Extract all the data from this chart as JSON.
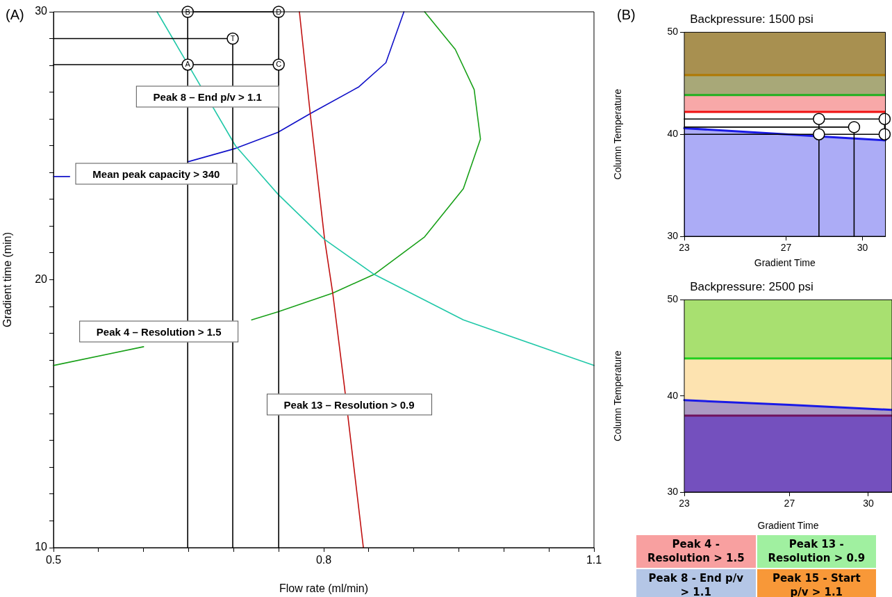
{
  "chart_data": [
    {
      "type": "line",
      "xlabel": "Flow rate (ml/min)",
      "ylabel": "Gradient time (min)",
      "annotations": [
        "(A)",
        "Peak 8 – End p/v > 1.1",
        "Mean peak capacity > 340",
        "Peak 4 – Resolution > 1.5",
        "Peak 13 – Resolution > 0.9"
      ],
      "xlim": [
        0.5,
        1.1
      ],
      "ylim": [
        10,
        30
      ],
      "grid": false,
      "xticks": [
        0.5,
        {
          "value": 0.55,
          "label": null
        },
        {
          "value": 0.6,
          "label": null
        },
        {
          "value": 0.65,
          "label": null
        },
        {
          "value": 0.7,
          "label": null
        },
        {
          "value": 0.75,
          "label": null
        },
        0.8,
        {
          "value": 0.85,
          "label": null
        },
        {
          "value": 0.9,
          "label": null
        },
        {
          "value": 0.95,
          "label": null
        },
        {
          "value": 1.0,
          "label": null
        },
        {
          "value": 1.05,
          "label": null
        },
        1.1
      ],
      "yticks": [
        10,
        {
          "value": 11,
          "label": null
        },
        {
          "value": 12,
          "label": null
        },
        {
          "value": 13,
          "label": null
        },
        {
          "value": 14,
          "label": null
        },
        {
          "value": 15,
          "label": null
        },
        {
          "value": 16,
          "label": null
        },
        {
          "value": 17,
          "label": null
        },
        {
          "value": 18,
          "label": null
        },
        {
          "value": 19,
          "label": null
        },
        20,
        {
          "value": 21,
          "label": null
        },
        {
          "value": 22,
          "label": null
        },
        {
          "value": 23,
          "label": null
        },
        {
          "value": 24,
          "label": null
        },
        {
          "value": 25,
          "label": null
        },
        {
          "value": 26,
          "label": null
        },
        {
          "value": 27,
          "label": null
        },
        {
          "value": 28,
          "label": null
        },
        {
          "value": 29,
          "label": null
        },
        30
      ],
      "marker": "none",
      "series": [
        {
          "color": "#18a018",
          "x": [
            0.5,
            0.6,
            0.649,
            0.72,
            0.749,
            0.81,
            0.856,
            0.912,
            0.955,
            0.974,
            0.967,
            0.946,
            0.912
          ],
          "values": [
            16.8,
            17.5,
            null,
            18.5,
            18.8,
            19.5,
            20.2,
            21.6,
            23.4,
            25.25,
            27.1,
            28.6,
            30
          ]
        },
        {
          "color": "#1010c8",
          "x": [
            0.5,
            0.518,
            0.6,
            0.649,
            0.702,
            0.749,
            0.785,
            0.839,
            0.869,
            0.889
          ],
          "values": [
            23.85,
            23.85,
            null,
            24.4,
            24.9,
            25.5,
            26.2,
            27.2,
            28.1,
            30
          ]
        },
        {
          "color": "#c01010",
          "x": [
            0.773,
            0.785,
            0.801,
            0.81,
            0.823,
            0.844
          ],
          "values": [
            30,
            26.2,
            21.5,
            19.5,
            16.0,
            10
          ]
        },
        {
          "color": "#20c8a8",
          "x": [
            0.615,
            0.649,
            0.702,
            0.749,
            0.801,
            0.856,
            0.955,
            1.1
          ],
          "values": [
            30,
            28.05,
            25.0,
            23.2,
            21.5,
            20.2,
            18.5,
            16.8
          ]
        },
        {
          "color": "#000000",
          "x": [
            0.649,
            0.649,
            0.75,
            0.75,
            null,
            0.5,
            0.75,
            null,
            0.699,
            0.699,
            0.5
          ],
          "values": [
            10,
            30,
            30,
            10,
            null,
            28.03,
            28.03,
            null,
            10,
            29.0,
            29.0
          ]
        },
        {
          "type": "scatter",
          "color": "#000000",
          "marker": "circle",
          "x": [
            0.649,
            0.649,
            0.75,
            0.75,
            0.699
          ],
          "values": [
            28.03,
            30,
            30,
            28.03,
            29.0
          ],
          "value_labels": [
            "A",
            "B",
            "D",
            "C",
            "T"
          ]
        }
      ]
    },
    {
      "type": "line",
      "title": "Backpressure: 1500 psi",
      "xlabel": "Gradient Time",
      "ylabel": "Column Temperature",
      "annotations": [
        "(B)"
      ],
      "xlim": [
        23,
        30.9
      ],
      "ylim": [
        30,
        50
      ],
      "xticks": [
        23,
        27,
        30
      ],
      "yticks": [
        30,
        40,
        50
      ],
      "grid": false,
      "marker": "none",
      "bands": [
        {
          "axis": "y",
          "from": 45.8,
          "to": 50,
          "color": "#a89050"
        },
        {
          "axis": "y",
          "from": 43.85,
          "to": 45.8,
          "color": "#a8a878"
        },
        {
          "axis": "y",
          "from": 42.2,
          "to": 43.85,
          "color": "#f8a8a8"
        }
      ],
      "ref_lines": [
        {
          "axis": "y",
          "value": 45.8,
          "color": "#b07800"
        },
        {
          "axis": "y",
          "value": 43.85,
          "color": "#20b020"
        },
        {
          "axis": "y",
          "value": 42.2,
          "color": "#f01010"
        }
      ],
      "series": [
        {
          "type": "area",
          "color": "#1a1ae6",
          "x": [
            23,
            27,
            28.3,
            30.9
          ],
          "values": [
            40.6,
            40.0,
            39.8,
            39.4
          ]
        },
        {
          "color": "#000000",
          "x": [
            28.29,
            28.29,
            30.87,
            30.87,
            23,
            null,
            23,
            28.29,
            null,
            29.67,
            29.67,
            23
          ],
          "values": [
            30,
            41.5,
            41.5,
            40.0,
            40.0,
            null,
            41.5,
            41.5,
            null,
            30,
            40.7,
            40.7
          ]
        },
        {
          "type": "scatter",
          "color": "#000000",
          "marker": "circle",
          "x": [
            28.29,
            28.29,
            29.67,
            30.87,
            30.87
          ],
          "values": [
            40.0,
            41.5,
            40.7,
            41.5,
            40.0
          ]
        }
      ]
    },
    {
      "type": "line",
      "title": "Backpressure: 2500 psi",
      "xlabel": "Gradient Time",
      "ylabel": "Column Temperature",
      "xlim": [
        23,
        30.9
      ],
      "ylim": [
        30,
        50
      ],
      "xticks": [
        23,
        27,
        30
      ],
      "yticks": [
        30,
        40,
        50
      ],
      "grid": false,
      "marker": "none",
      "bands": [
        {
          "axis": "y",
          "from": 43.9,
          "to": 50,
          "color": "#a8e070"
        },
        {
          "axis": "y",
          "from": 37.96,
          "to": 43.9,
          "color": "#fde3b0"
        },
        {
          "axis": "y",
          "from": 30,
          "to": 37.96,
          "color": "#a870a8"
        }
      ],
      "ref_lines": [
        {
          "axis": "y",
          "value": 43.9,
          "color": "#20d020"
        },
        {
          "axis": "y",
          "value": 37.96,
          "color": "#a01010"
        }
      ],
      "series": [
        {
          "type": "area",
          "color": "#1a1ae6",
          "x": [
            23,
            27,
            30.9
          ],
          "values": [
            39.56,
            39.08,
            38.55
          ]
        }
      ]
    },
    {
      "type": "other",
      "categories": [
        "Peak 4 - Resolution > 1.5",
        "Peak 13 - Resolution > 0.9",
        "Peak 8 - End p/v > 1.1",
        "Peak 15 - Start p/v > 1.1"
      ],
      "colors": [
        "#f8a0a0",
        "#a0f0a0",
        "#b4c6e6",
        "#f89838"
      ]
    }
  ]
}
